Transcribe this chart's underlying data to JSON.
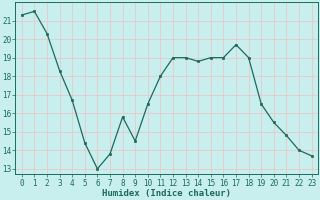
{
  "x": [
    0,
    1,
    2,
    3,
    4,
    5,
    6,
    7,
    8,
    9,
    10,
    11,
    12,
    13,
    14,
    15,
    16,
    17,
    18,
    19,
    20,
    21,
    22,
    23
  ],
  "y": [
    21.3,
    21.5,
    20.3,
    18.3,
    16.7,
    14.4,
    13.0,
    13.8,
    15.8,
    14.5,
    16.5,
    18.0,
    19.0,
    19.0,
    18.8,
    19.0,
    19.0,
    19.7,
    19.0,
    16.5,
    15.5,
    14.8,
    14.0,
    13.7
  ],
  "line_color": "#1a6b5e",
  "marker": "s",
  "marker_size": 2.0,
  "bg_color": "#c8eeee",
  "grid_color": "#e8c8c8",
  "axis_color": "#1a6b5e",
  "xlabel": "Humidex (Indice chaleur)",
  "ylim": [
    12.7,
    22.0
  ],
  "xlim": [
    -0.5,
    23.5
  ],
  "yticks": [
    13,
    14,
    15,
    16,
    17,
    18,
    19,
    20,
    21
  ],
  "xticks": [
    0,
    1,
    2,
    3,
    4,
    5,
    6,
    7,
    8,
    9,
    10,
    11,
    12,
    13,
    14,
    15,
    16,
    17,
    18,
    19,
    20,
    21,
    22,
    23
  ],
  "tick_labelsize": 5.5,
  "xlabel_fontsize": 6.5,
  "linewidth": 0.9
}
